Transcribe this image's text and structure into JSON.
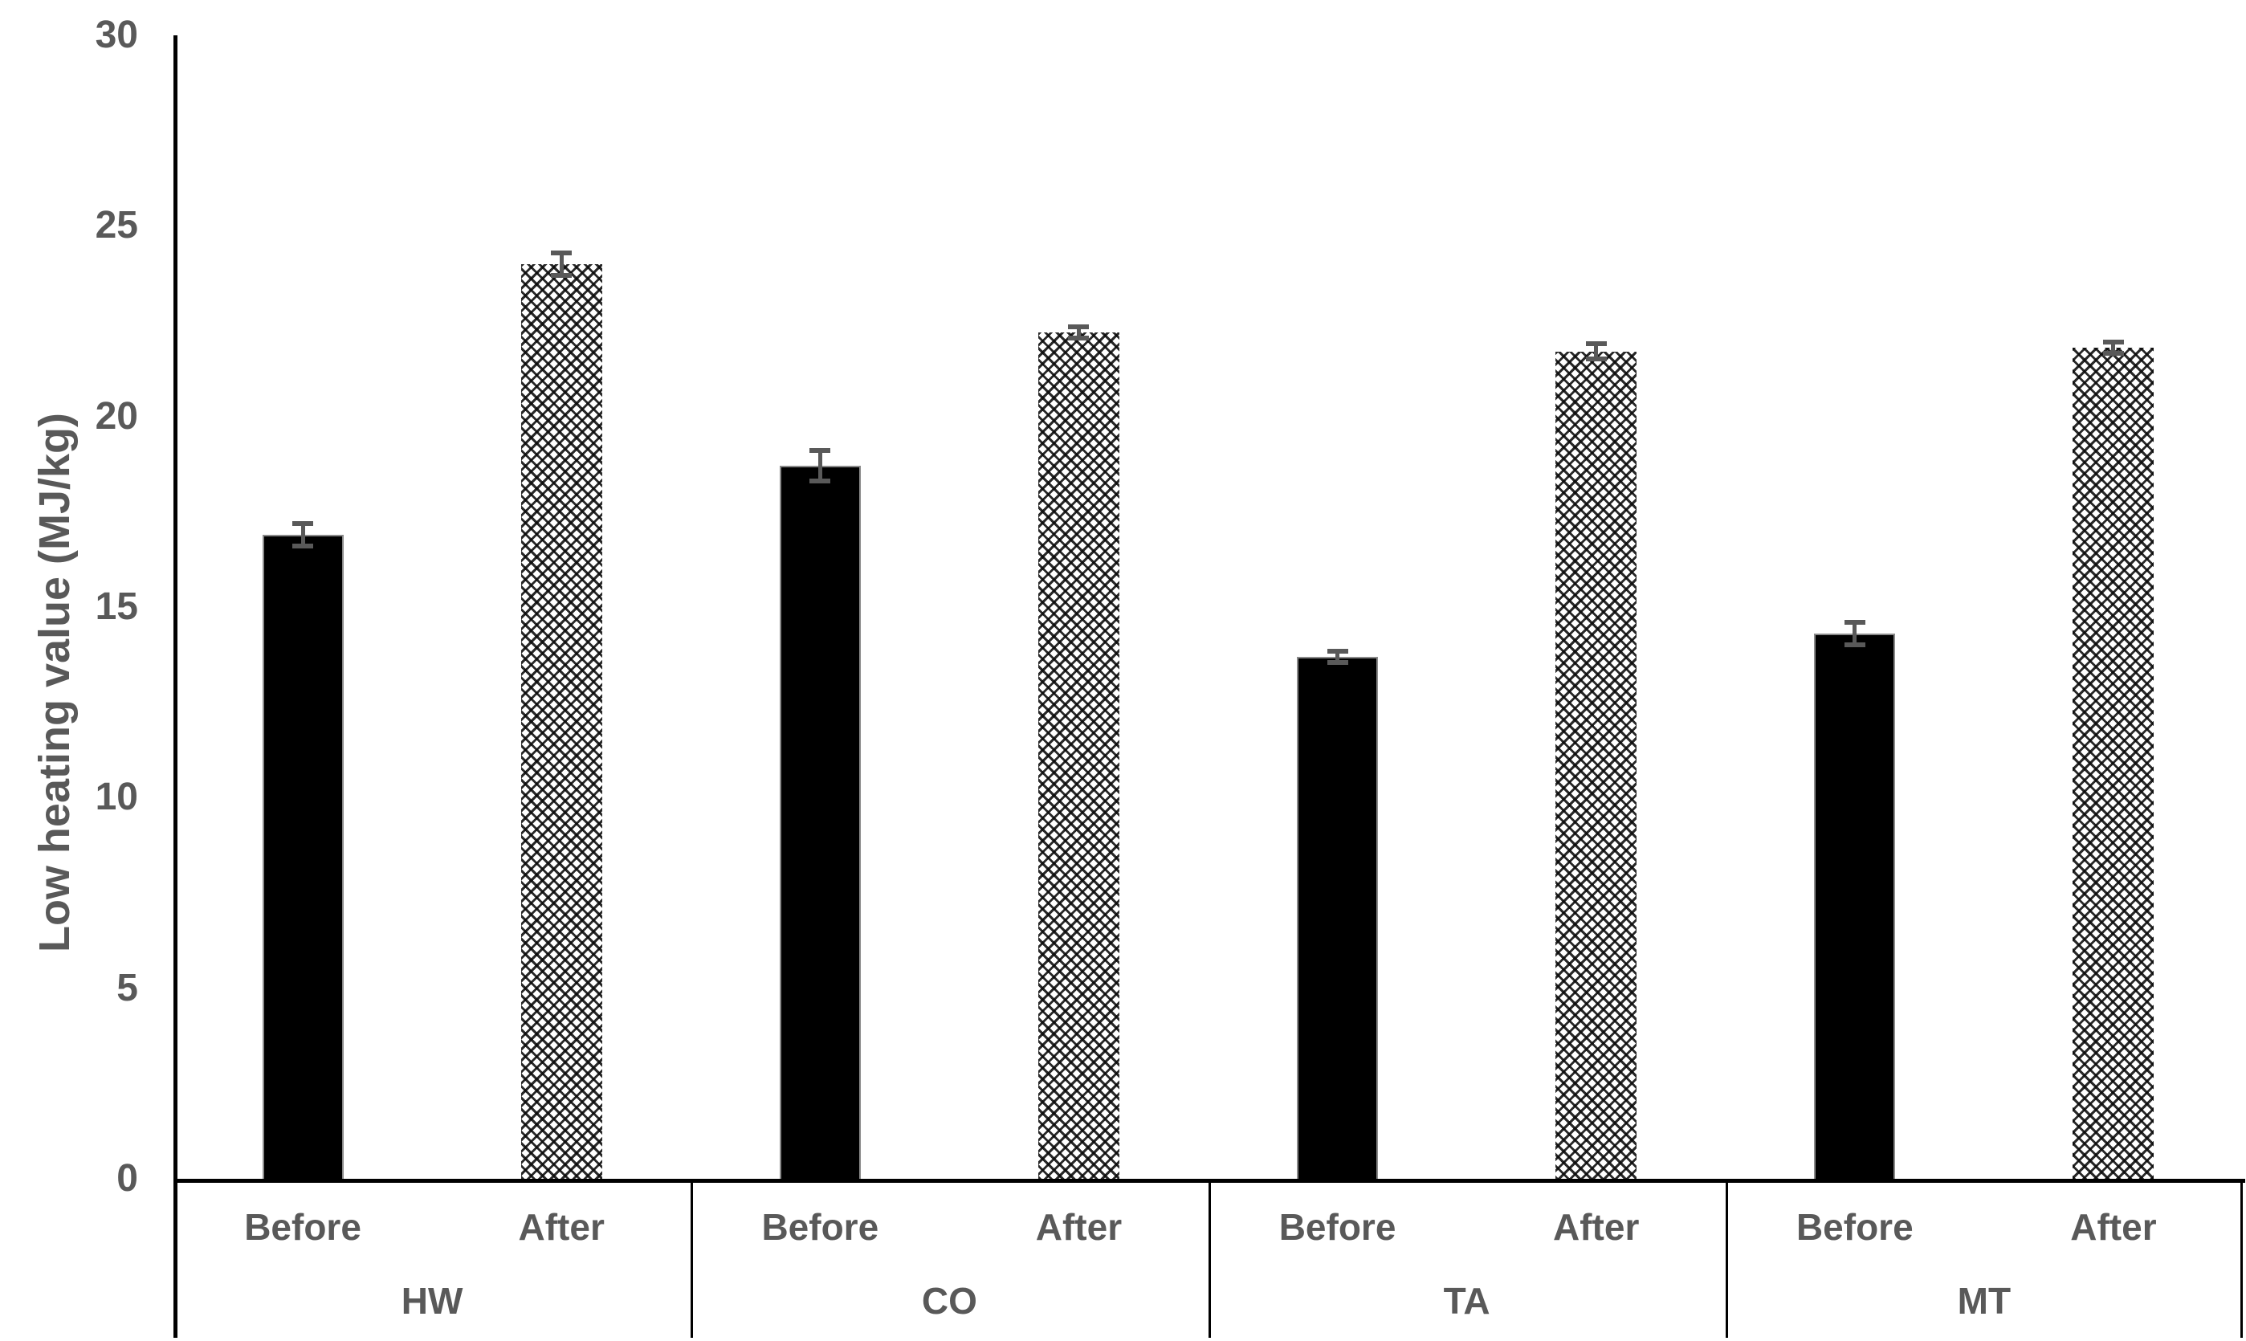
{
  "figure": {
    "background_color": "#ffffff",
    "text_color": "#595959",
    "axis_color": "#000000",
    "bar_fill_color": "#000000",
    "error_bar_color": "#595959"
  },
  "chart_data": {
    "type": "bar",
    "title": "",
    "xlabel": "",
    "ylabel": "Low heating value (MJ/kg)",
    "ylim": [
      0,
      30
    ],
    "yticks": [
      0,
      5,
      10,
      15,
      20,
      25,
      30
    ],
    "grid": false,
    "legend_position": "none",
    "groups": [
      "HW",
      "CO",
      "TA",
      "MT"
    ],
    "sub_categories": [
      "Before",
      "After"
    ],
    "series": [
      {
        "name": "Before",
        "style": "solid-black",
        "values": [
          16.9,
          18.7,
          13.7,
          14.3
        ],
        "errors": [
          0.3,
          0.4,
          0.15,
          0.3
        ]
      },
      {
        "name": "After",
        "style": "dotted-diamond-crosshatch",
        "values": [
          24.0,
          22.2,
          21.7,
          21.8
        ],
        "errors": [
          0.3,
          0.15,
          0.2,
          0.15
        ]
      }
    ]
  }
}
